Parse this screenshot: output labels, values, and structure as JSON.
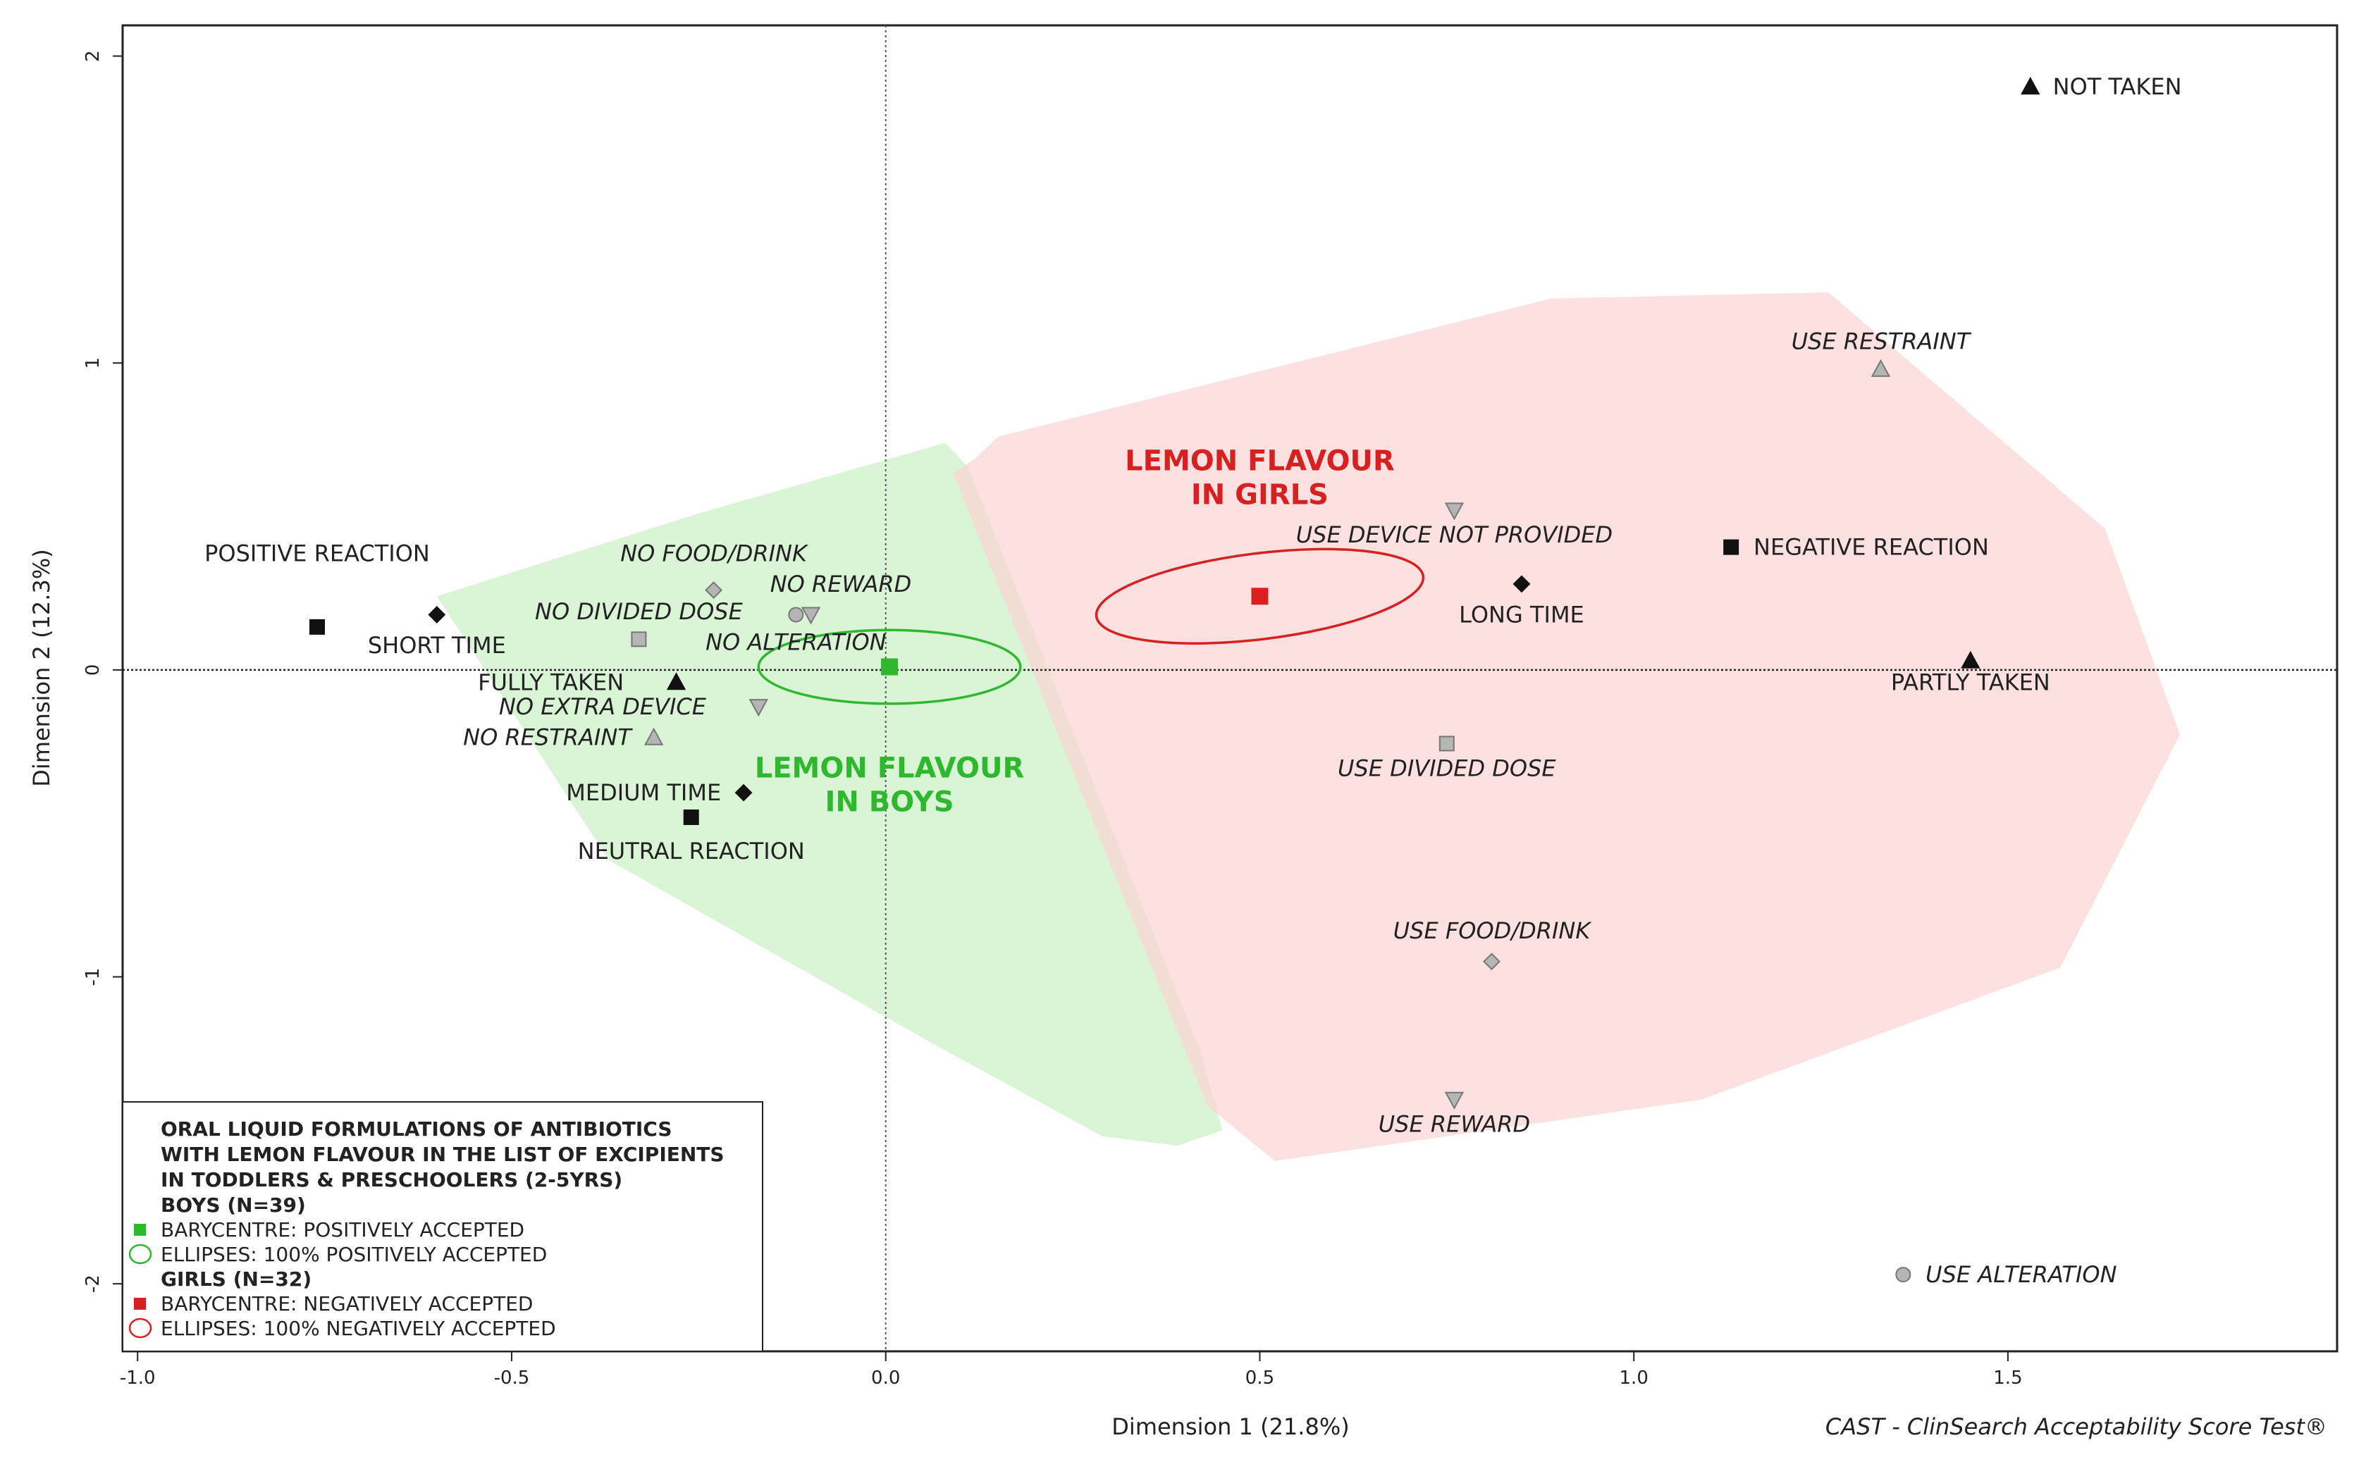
{
  "chart_data": {
    "type": "scatter",
    "title": "",
    "xlabel": "Dimension 1 (21.8%)",
    "ylabel": "Dimension 2 (12.3%)",
    "xlim": [
      -1.02,
      1.94
    ],
    "ylim": [
      -2.22,
      2.1
    ],
    "x_ticks": [
      {
        "v": -1.0,
        "label": "-1.0"
      },
      {
        "v": -0.5,
        "label": "-0.5"
      },
      {
        "v": 0.0,
        "label": "0.0"
      },
      {
        "v": 0.5,
        "label": "0.5"
      },
      {
        "v": 1.0,
        "label": "1.0"
      },
      {
        "v": 1.5,
        "label": "1.5"
      }
    ],
    "y_ticks": [
      {
        "v": -2,
        "label": "-2"
      },
      {
        "v": -1,
        "label": "-1"
      },
      {
        "v": 0,
        "label": "0"
      },
      {
        "v": 1,
        "label": "1"
      },
      {
        "v": 2,
        "label": "2"
      }
    ],
    "credit": "CAST - ClinSearch Acceptability Score Test®",
    "points": [
      {
        "label": "NOT TAKEN",
        "x": 1.53,
        "y": 1.9,
        "marker": "triangle",
        "fill": "#111111",
        "italic": false,
        "label_dx": 0.03,
        "label_dy": 0.0,
        "anchor": "start"
      },
      {
        "label": "PARTLY TAKEN",
        "x": 1.45,
        "y": 0.03,
        "marker": "triangle",
        "fill": "#111111",
        "italic": false,
        "label_dx": 0.0,
        "label_dy": -0.07,
        "anchor": "middle"
      },
      {
        "label": "FULLY TAKEN",
        "x": -0.28,
        "y": -0.04,
        "marker": "triangle",
        "fill": "#111111",
        "italic": false,
        "label_dx": -0.07,
        "label_dy": 0.0,
        "anchor": "end"
      },
      {
        "label": "NEGATIVE REACTION",
        "x": 1.13,
        "y": 0.4,
        "marker": "square",
        "fill": "#111111",
        "italic": false,
        "label_dx": 0.03,
        "label_dy": 0.0,
        "anchor": "start"
      },
      {
        "label": "POSITIVE REACTION",
        "x": -0.76,
        "y": 0.14,
        "marker": "square",
        "fill": "#111111",
        "italic": false,
        "label_dx": 0.0,
        "label_dy": 0.24,
        "anchor": "middle"
      },
      {
        "label": "NEUTRAL REACTION",
        "x": -0.26,
        "y": -0.48,
        "marker": "square",
        "fill": "#111111",
        "italic": false,
        "label_dx": 0.0,
        "label_dy": -0.11,
        "anchor": "middle"
      },
      {
        "label": "LONG TIME",
        "x": 0.85,
        "y": 0.28,
        "marker": "diamond",
        "fill": "#111111",
        "italic": false,
        "label_dx": 0.0,
        "label_dy": -0.1,
        "anchor": "middle"
      },
      {
        "label": "SHORT TIME",
        "x": -0.6,
        "y": 0.18,
        "marker": "diamond",
        "fill": "#111111",
        "italic": false,
        "label_dx": 0.0,
        "label_dy": -0.1,
        "anchor": "middle"
      },
      {
        "label": "MEDIUM TIME",
        "x": -0.19,
        "y": -0.4,
        "marker": "diamond",
        "fill": "#111111",
        "italic": false,
        "label_dx": -0.03,
        "label_dy": 0.0,
        "anchor": "end"
      },
      {
        "label": "USE RESTRAINT",
        "x": 1.33,
        "y": 0.98,
        "marker": "triangle",
        "fill": "#b5b5b5",
        "italic": true,
        "label_dx": 0.0,
        "label_dy": 0.09,
        "anchor": "middle"
      },
      {
        "label": "NO RESTRAINT",
        "x": -0.31,
        "y": -0.22,
        "marker": "triangle",
        "fill": "#b5b5b5",
        "italic": true,
        "label_dx": -0.03,
        "label_dy": 0.0,
        "anchor": "end"
      },
      {
        "label": "USE DEVICE NOT PROVIDED",
        "x": 0.76,
        "y": 0.52,
        "marker": "triangle-down",
        "fill": "#b5b5b5",
        "italic": true,
        "label_dx": 0.0,
        "label_dy": -0.08,
        "anchor": "middle"
      },
      {
        "label": "NO EXTRA DEVICE",
        "x": -0.17,
        "y": -0.12,
        "marker": "triangle-down",
        "fill": "#b5b5b5",
        "italic": true,
        "label_dx": -0.07,
        "label_dy": 0.0,
        "anchor": "end"
      },
      {
        "label": "USE REWARD",
        "x": 0.76,
        "y": -1.4,
        "marker": "triangle-down",
        "fill": "#b5b5b5",
        "italic": true,
        "label_dx": 0.0,
        "label_dy": -0.08,
        "anchor": "middle"
      },
      {
        "label": "NO REWARD",
        "x": -0.1,
        "y": 0.18,
        "marker": "triangle-down",
        "fill": "#b5b5b5",
        "italic": true,
        "label_dx": 0.04,
        "label_dy": 0.1,
        "anchor": "middle"
      },
      {
        "label": "USE DIVIDED DOSE",
        "x": 0.75,
        "y": -0.24,
        "marker": "square",
        "fill": "#b5b5b5",
        "italic": true,
        "label_dx": 0.0,
        "label_dy": -0.08,
        "anchor": "middle"
      },
      {
        "label": "NO DIVIDED DOSE",
        "x": -0.33,
        "y": 0.1,
        "marker": "square",
        "fill": "#b5b5b5",
        "italic": true,
        "label_dx": 0.0,
        "label_dy": 0.09,
        "anchor": "middle"
      },
      {
        "label": "USE FOOD/DRINK",
        "x": 0.81,
        "y": -0.95,
        "marker": "diamond",
        "fill": "#b5b5b5",
        "italic": true,
        "label_dx": 0.0,
        "label_dy": 0.1,
        "anchor": "middle"
      },
      {
        "label": "NO FOOD/DRINK",
        "x": -0.23,
        "y": 0.26,
        "marker": "diamond",
        "fill": "#b5b5b5",
        "italic": true,
        "label_dx": 0.0,
        "label_dy": 0.12,
        "anchor": "middle"
      },
      {
        "label": "USE ALTERATION",
        "x": 1.36,
        "y": -1.97,
        "marker": "circle",
        "fill": "#b5b5b5",
        "italic": true,
        "label_dx": 0.03,
        "label_dy": 0.0,
        "anchor": "start"
      },
      {
        "label": "NO ALTERATION",
        "x": -0.12,
        "y": 0.18,
        "marker": "circle",
        "fill": "#b5b5b5",
        "italic": true,
        "label_dx": 0.0,
        "label_dy": -0.09,
        "anchor": "middle"
      }
    ],
    "groups": [
      {
        "name": "LEMON FLAVOUR IN BOYS",
        "title_lines": [
          "LEMON FLAVOUR",
          "IN BOYS"
        ],
        "color": "#2eb82e",
        "hull_color": "#c8f0c2",
        "barycentre": {
          "x": 0.005,
          "y": 0.01
        },
        "ellipse": {
          "rx": 0.175,
          "ry": 0.12,
          "rotation_deg": 0
        },
        "title_pos": {
          "x": 0.005,
          "y": -0.35
        },
        "hull": [
          [
            -0.6,
            0.24
          ],
          [
            -0.25,
            0.51
          ],
          [
            0.08,
            0.74
          ],
          [
            0.11,
            0.66
          ],
          [
            0.42,
            -1.24
          ],
          [
            0.45,
            -1.5
          ],
          [
            0.39,
            -1.55
          ],
          [
            0.29,
            -1.52
          ],
          [
            0.05,
            -1.2
          ],
          [
            -0.37,
            -0.62
          ]
        ]
      },
      {
        "name": "LEMON FLAVOUR IN GIRLS",
        "title_lines": [
          "LEMON FLAVOUR",
          "IN GIRLS"
        ],
        "color": "#d92020",
        "hull_color": "#fcd2d2",
        "barycentre": {
          "x": 0.5,
          "y": 0.24
        },
        "ellipse": {
          "rx": 0.22,
          "ry": 0.14,
          "rotation_deg": -7
        },
        "title_pos": {
          "x": 0.5,
          "y": 0.65
        },
        "hull": [
          [
            0.12,
            0.69
          ],
          [
            0.09,
            0.64
          ],
          [
            0.43,
            -1.42
          ],
          [
            0.52,
            -1.6
          ],
          [
            1.09,
            -1.4
          ],
          [
            1.57,
            -0.97
          ],
          [
            1.73,
            -0.21
          ],
          [
            1.63,
            0.46
          ],
          [
            1.26,
            1.23
          ],
          [
            0.89,
            1.21
          ],
          [
            0.15,
            0.76
          ]
        ]
      }
    ],
    "legend": {
      "position": "bottom-left",
      "title_lines": [
        "ORAL LIQUID FORMULATIONS OF ANTIBIOTICS",
        "WITH LEMON FLAVOUR IN THE LIST OF EXCIPIENTS",
        "IN TODDLERS & PRESCHOOLERS (2-5YRS)"
      ],
      "boys_header": "BOYS (N=39)",
      "boys_barycentre": "BARYCENTRE: POSITIVELY ACCEPTED",
      "boys_ellipses": "ELLIPSES: 100% POSITIVELY ACCEPTED",
      "girls_header": "GIRLS (N=32)",
      "girls_barycentre": "BARYCENTRE: NEGATIVELY ACCEPTED",
      "girls_ellipses": "ELLIPSES: 100% NEGATIVELY ACCEPTED"
    }
  }
}
